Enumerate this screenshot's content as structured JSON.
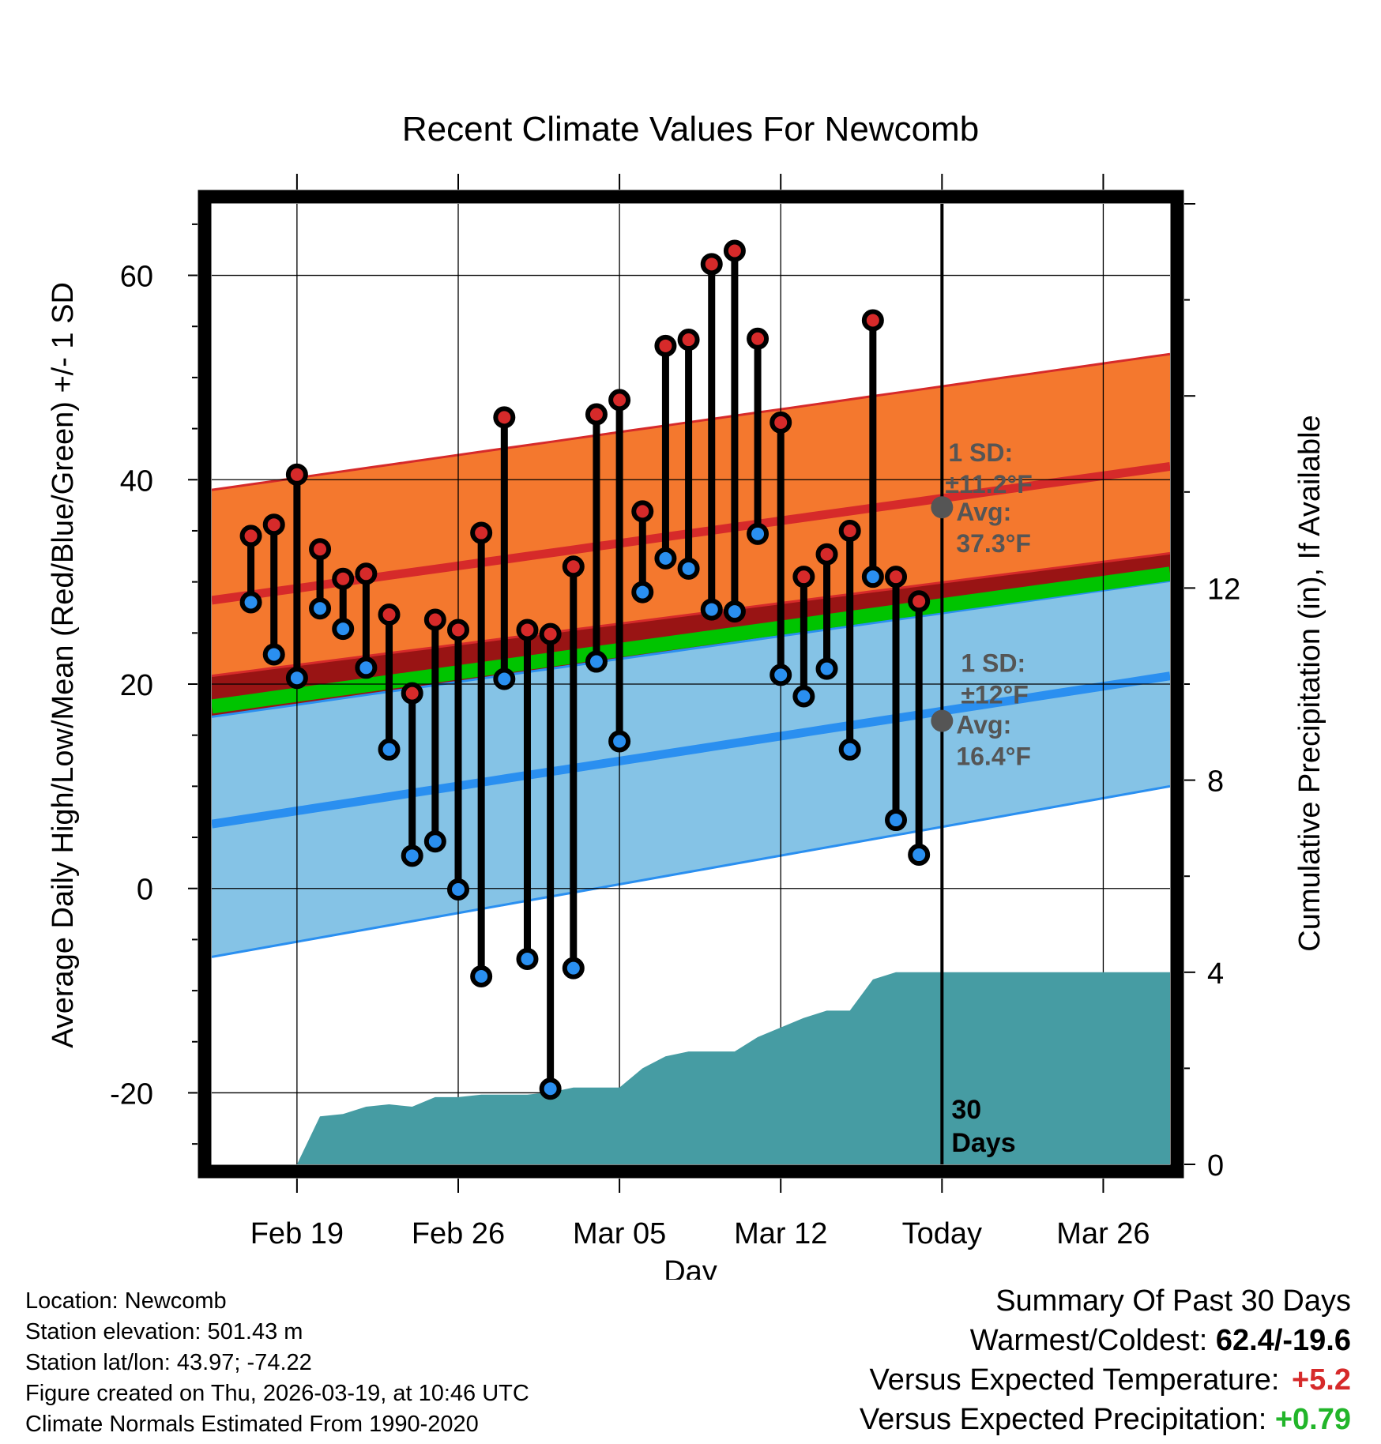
{
  "chart_data": {
    "type": "line",
    "title": "Recent Climate Values For Newcomb",
    "xlabel": "Day",
    "ylabel": "Average Daily High/Low/Mean (Red/Blue/Green) +/- 1 SD",
    "y2label": "Cumulative Precipitation (in), If Available",
    "ylim": [
      -27,
      67
    ],
    "y2lim": [
      0,
      20
    ],
    "xlim": [
      0.3,
      41.9
    ],
    "xticks": [
      {
        "day": 4,
        "label": "Feb 19"
      },
      {
        "day": 11,
        "label": "Feb 26"
      },
      {
        "day": 18,
        "label": "Mar 05"
      },
      {
        "day": 25,
        "label": "Mar 12"
      },
      {
        "day": 32,
        "label": "Today"
      },
      {
        "day": 39,
        "label": "Mar 26"
      }
    ],
    "yticks": [
      -20,
      0,
      20,
      40,
      60
    ],
    "y2ticks": [
      0,
      4,
      8,
      12
    ],
    "days": [
      2,
      3,
      4,
      5,
      6,
      7,
      8,
      9,
      10,
      11,
      12,
      13,
      14,
      15,
      16,
      17,
      18,
      19,
      20,
      21,
      22,
      23,
      24,
      25,
      26,
      27,
      28,
      29,
      30,
      31
    ],
    "highs": [
      34.5,
      35.6,
      40.5,
      33.2,
      30.3,
      30.8,
      26.8,
      19.1,
      26.3,
      25.3,
      34.8,
      46.1,
      25.3,
      24.9,
      31.5,
      46.4,
      47.8,
      36.9,
      53.1,
      53.7,
      61.1,
      62.4,
      53.8,
      45.6,
      30.5,
      32.7,
      35.0,
      55.6,
      30.5,
      28.1
    ],
    "lows": [
      28.0,
      22.9,
      20.6,
      27.4,
      25.4,
      21.6,
      13.6,
      3.2,
      4.6,
      -0.1,
      -8.6,
      20.5,
      -6.9,
      -19.6,
      -7.8,
      22.2,
      14.4,
      29.0,
      32.3,
      31.3,
      27.3,
      27.1,
      34.7,
      20.9,
      18.8,
      21.5,
      13.6,
      30.5,
      6.7,
      3.3
    ],
    "normal_high": {
      "days": [
        0.3,
        41.9
      ],
      "avg": [
        28.2,
        41.3
      ],
      "upper": [
        39.0,
        52.3
      ],
      "lower": [
        20.8,
        32.8
      ]
    },
    "normal_low": {
      "days": [
        0.3,
        41.9
      ],
      "avg": [
        6.3,
        20.8
      ],
      "upper": [
        16.8,
        30.1
      ],
      "lower": [
        -6.7,
        10.0
      ]
    },
    "normal_mean": {
      "days": [
        0.3,
        41.9
      ],
      "values": [
        17.8,
        30.8
      ]
    },
    "today_day": 32,
    "today_high": {
      "sd_label": "1 SD:",
      "sd_value": "±11.2°F",
      "avg_label": "Avg:",
      "avg_value": "37.3°F",
      "avg": 37.3
    },
    "today_low": {
      "sd_label": "1 SD:",
      "sd_value": "±12°F",
      "avg_label": "Avg:",
      "avg_value": "16.4°F",
      "avg": 16.4
    },
    "precip_cumulative": {
      "days": [
        3,
        4,
        5,
        6,
        7,
        8,
        9,
        10,
        11,
        12,
        13,
        14,
        15,
        16,
        17,
        18,
        19,
        20,
        21,
        22,
        23,
        24,
        25,
        26,
        27,
        28,
        29,
        30,
        31,
        32,
        41.9
      ],
      "values": [
        0,
        0,
        1.0,
        1.05,
        1.2,
        1.25,
        1.2,
        1.4,
        1.4,
        1.45,
        1.45,
        1.45,
        1.5,
        1.6,
        1.6,
        1.6,
        2.0,
        2.25,
        2.35,
        2.35,
        2.35,
        2.65,
        2.85,
        3.05,
        3.2,
        3.2,
        3.85,
        4.0,
        4.0,
        4.0,
        4.0
      ]
    },
    "window_label": [
      "30",
      "Days"
    ]
  },
  "info": {
    "location": "Location: Newcomb",
    "elevation": "Station elevation: 501.43 m",
    "latlon": "Station lat/lon: 43.97; -74.22",
    "created": "Figure created on Thu, 2026-03-19, at 10:46 UTC",
    "normals": "Climate Normals Estimated From 1990-2020"
  },
  "summary": {
    "title": "Summary Of Past 30 Days",
    "warmest_label": "Warmest/Coldest:",
    "warmest_value": "62.4/-19.6",
    "temp_label": "Versus Expected Temperature:",
    "temp_value": "+5.2",
    "precip_label": "Versus Expected Precipitation:",
    "precip_value": "+0.79"
  },
  "colors": {
    "high_band": "#f4782e",
    "high_line": "#d62a2a",
    "low_band": "#85c3e6",
    "low_line": "#2a8ff0",
    "overlap": "#991414",
    "mean_line": "#00c400",
    "precip": "#469ca3",
    "annotation": "#555555"
  }
}
